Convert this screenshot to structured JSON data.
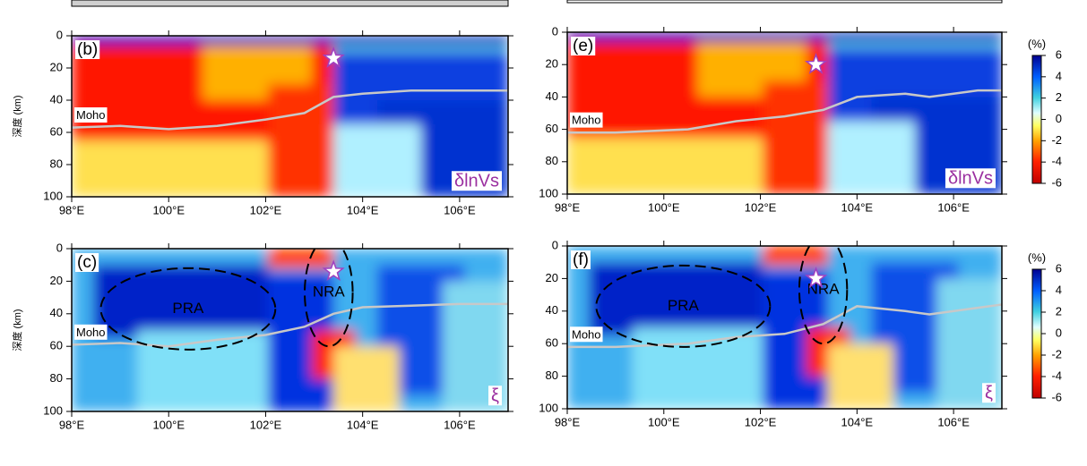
{
  "chart_data": [
    {
      "type": "heatmap",
      "label": "(b)",
      "ylabel": "深度 (km)",
      "annotation": "δlnVs",
      "xlim": [
        98,
        107
      ],
      "xticks": [
        {
          "value": 98,
          "label": "98°E"
        },
        {
          "value": 100,
          "label": "100°E"
        },
        {
          "value": 102,
          "label": "102°E"
        },
        {
          "value": 104,
          "label": "104°E"
        },
        {
          "value": 106,
          "label": "106°E"
        }
      ],
      "ylim": [
        0,
        100
      ],
      "yticks": [
        0,
        20,
        40,
        60,
        80,
        100
      ],
      "y_inverted": true,
      "series": [
        {
          "name": "Moho",
          "color": "#c8c8c8",
          "x": [
            98,
            99,
            100,
            101,
            102,
            102.8,
            103.4,
            104,
            105,
            106,
            107
          ],
          "values": [
            57,
            56,
            58,
            56,
            52,
            48,
            38,
            36,
            34,
            34,
            34
          ]
        }
      ],
      "star": {
        "x": 103.4,
        "y": 14
      }
    },
    {
      "type": "heatmap",
      "label": "(c)",
      "ylabel": "深度 (km)",
      "annotation": "ξ",
      "xlim": [
        98,
        107
      ],
      "xticks": [
        {
          "value": 98,
          "label": "98°E"
        },
        {
          "value": 100,
          "label": "100°E"
        },
        {
          "value": 102,
          "label": "102°E"
        },
        {
          "value": 104,
          "label": "104°E"
        },
        {
          "value": 106,
          "label": "106°E"
        }
      ],
      "ylim": [
        0,
        100
      ],
      "yticks": [
        0,
        20,
        40,
        60,
        80,
        100
      ],
      "y_inverted": true,
      "series": [
        {
          "name": "Moho",
          "color": "#c8c8c8",
          "x": [
            98,
            99,
            100,
            101,
            102,
            102.8,
            103.4,
            104,
            105,
            106,
            107
          ],
          "values": [
            59,
            58,
            60,
            56,
            53,
            48,
            40,
            36,
            35,
            34,
            34
          ]
        }
      ],
      "regions": [
        "PRA",
        "NRA"
      ],
      "star": {
        "x": 103.4,
        "y": 14
      }
    },
    {
      "type": "heatmap",
      "label": "(e)",
      "annotation": "δlnVs",
      "xlim": [
        98,
        107
      ],
      "xticks": [
        {
          "value": 98,
          "label": "98°E"
        },
        {
          "value": 100,
          "label": "100°E"
        },
        {
          "value": 102,
          "label": "102°E"
        },
        {
          "value": 104,
          "label": "104°E"
        },
        {
          "value": 106,
          "label": "106°E"
        }
      ],
      "ylim": [
        0,
        100
      ],
      "yticks": [
        0,
        20,
        40,
        60,
        80,
        100
      ],
      "y_inverted": true,
      "series": [
        {
          "name": "Moho",
          "color": "#c8c8c8",
          "x": [
            98,
            99,
            100.5,
            101.5,
            102.5,
            103.3,
            104,
            105,
            105.5,
            106.5,
            107
          ],
          "values": [
            62,
            62,
            60,
            55,
            52,
            48,
            40,
            38,
            40,
            36,
            36
          ]
        }
      ],
      "star": {
        "x": 103.15,
        "y": 20
      },
      "colorbar": {
        "label": "(%)",
        "lim": [
          -6,
          6
        ],
        "ticks": [
          6,
          4,
          2,
          0,
          -2,
          -4,
          -6
        ]
      }
    },
    {
      "type": "heatmap",
      "label": "(f)",
      "annotation": "ξ",
      "xlim": [
        98,
        107
      ],
      "xticks": [
        {
          "value": 98,
          "label": "98°E"
        },
        {
          "value": 100,
          "label": "100°E"
        },
        {
          "value": 102,
          "label": "102°E"
        },
        {
          "value": 104,
          "label": "104°E"
        },
        {
          "value": 106,
          "label": "106°E"
        }
      ],
      "ylim": [
        0,
        100
      ],
      "yticks": [
        0,
        20,
        40,
        60,
        80,
        100
      ],
      "y_inverted": true,
      "series": [
        {
          "name": "Moho",
          "color": "#c8c8c8",
          "x": [
            98,
            99,
            100.5,
            101.5,
            102.5,
            103.3,
            104,
            105,
            105.5,
            106.5,
            107
          ],
          "values": [
            62,
            62,
            60,
            56,
            54,
            48,
            37,
            40,
            42,
            38,
            36
          ]
        }
      ],
      "regions": [
        "PRA",
        "NRA"
      ],
      "star": {
        "x": 103.15,
        "y": 20
      },
      "colorbar": {
        "label": "(%)",
        "lim": [
          -6,
          6
        ],
        "ticks": [
          6,
          4,
          2,
          0,
          -2,
          -4,
          -6
        ]
      }
    }
  ]
}
